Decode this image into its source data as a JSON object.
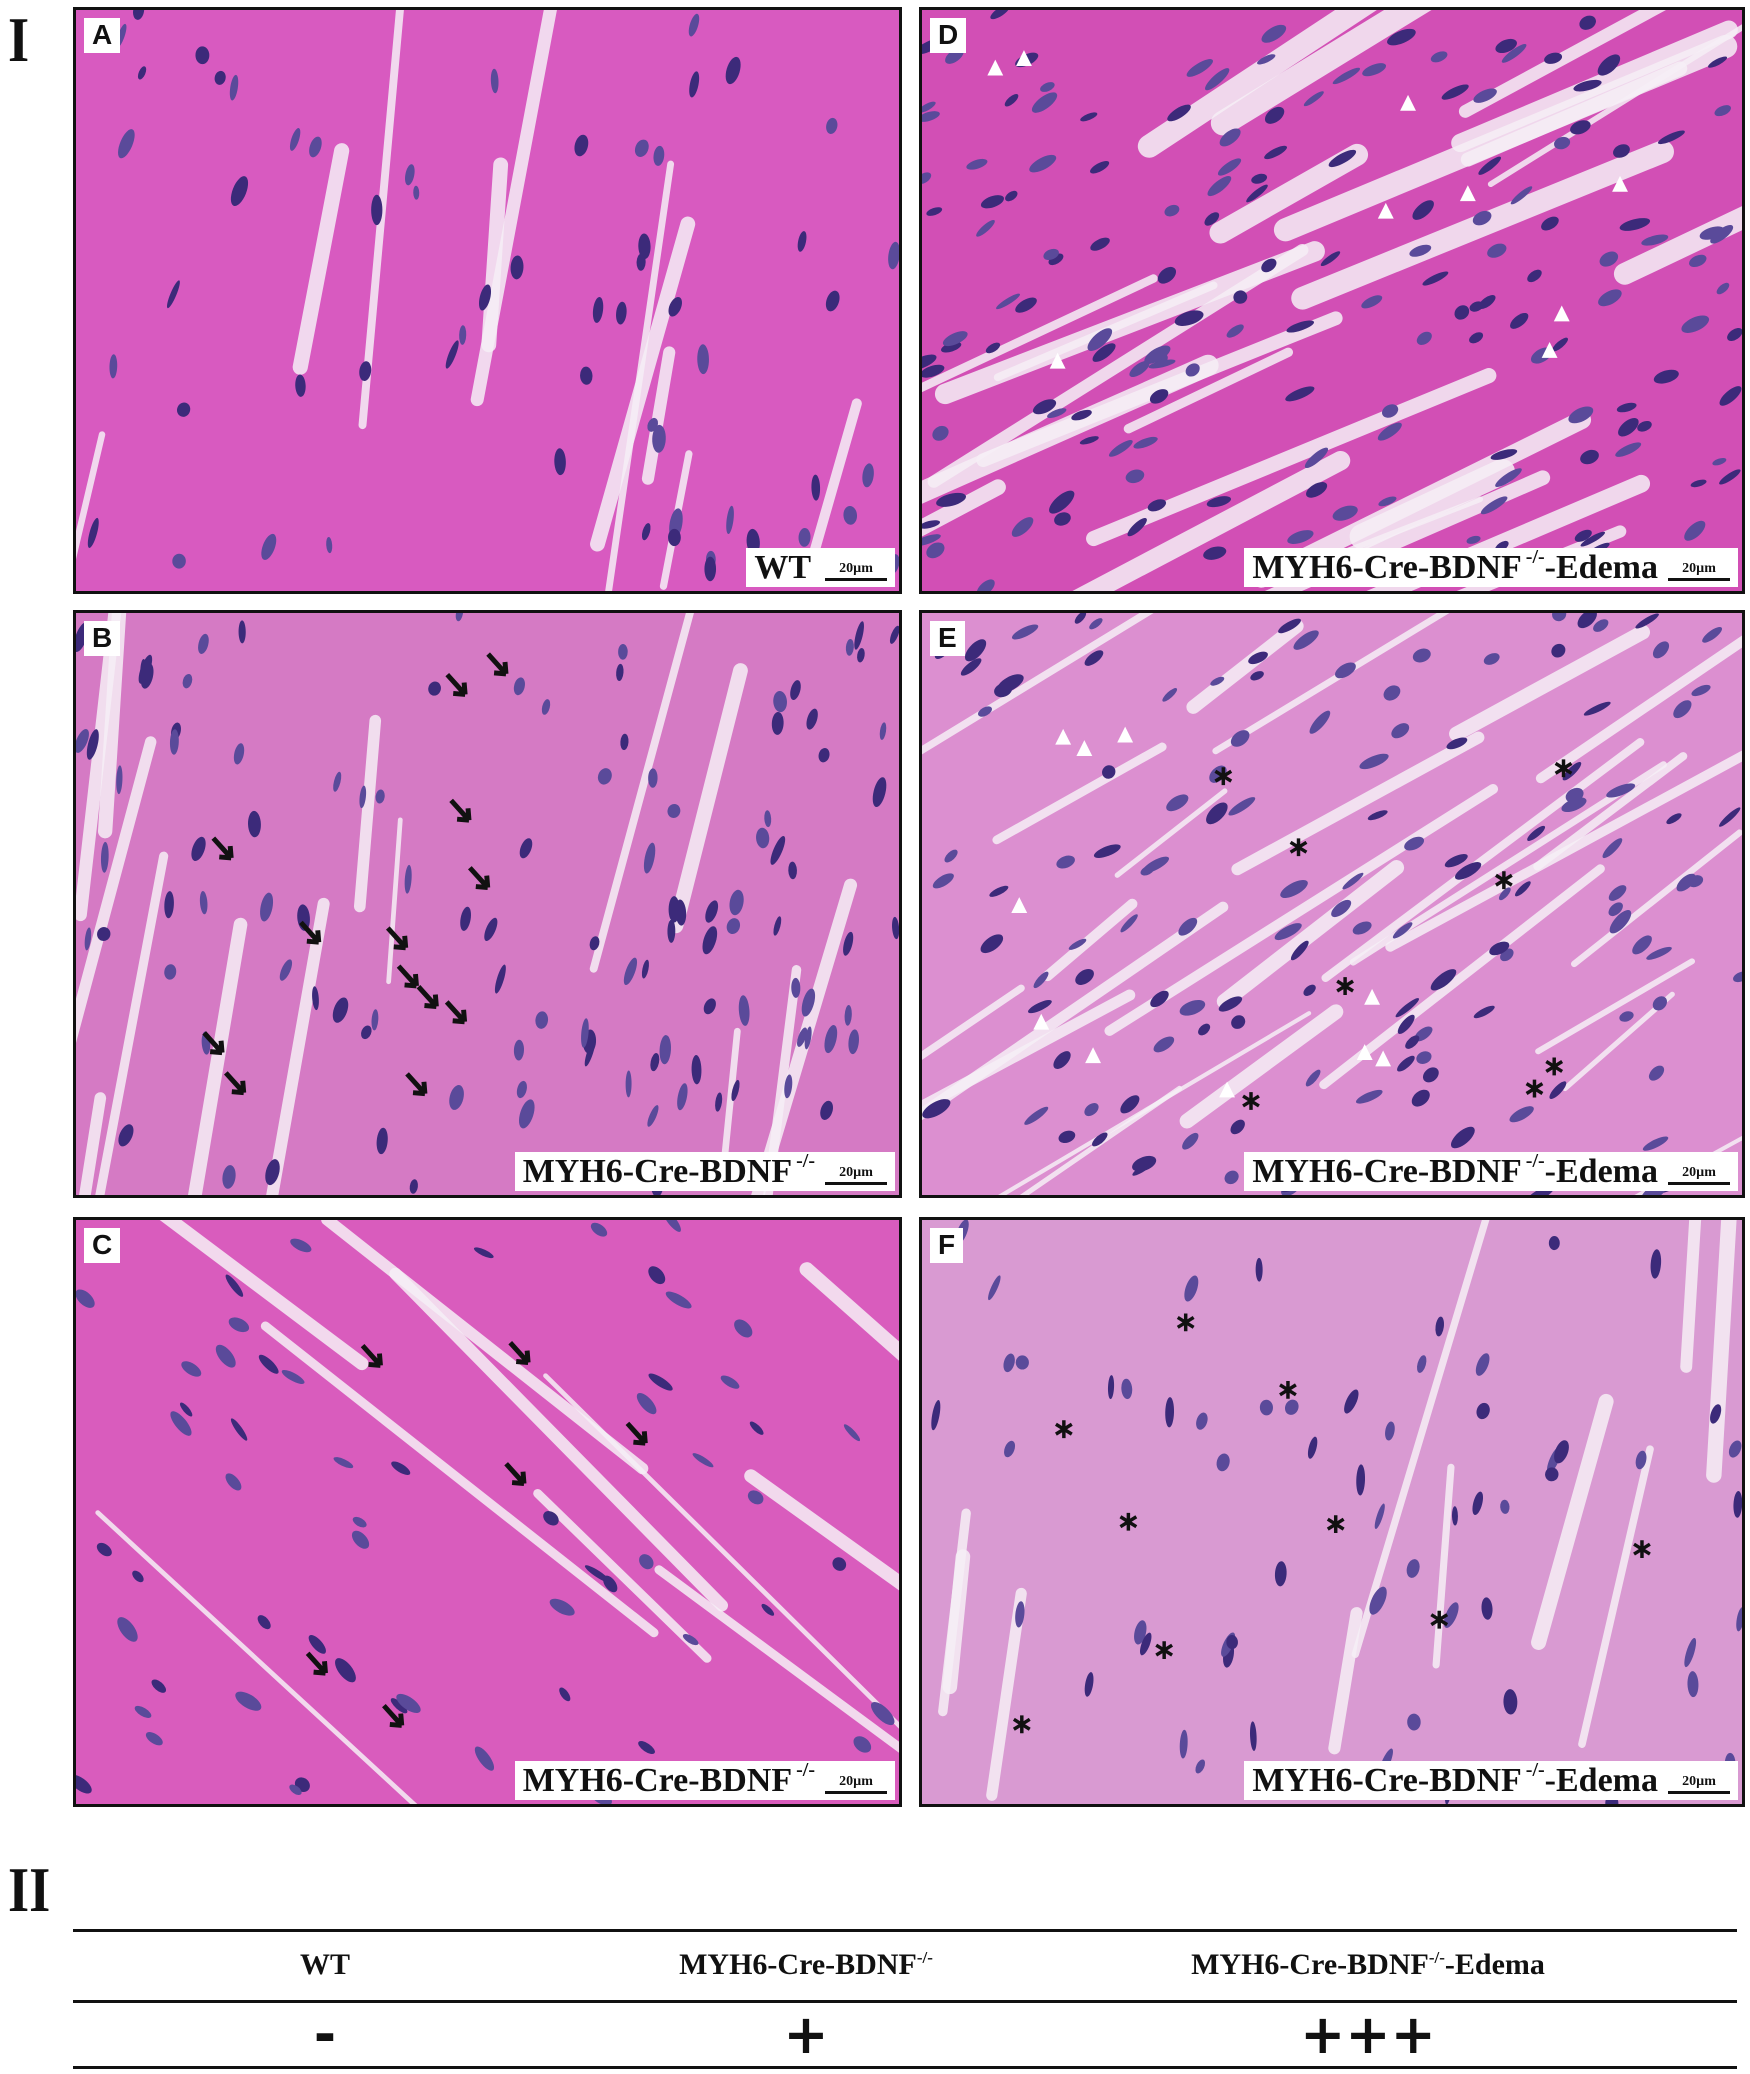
{
  "figure": {
    "part_one_label": "I",
    "part_two_label": "II",
    "scale_bar": "20µm",
    "panels": [
      {
        "id": "A",
        "letter": "A",
        "caption": "WT",
        "superscript": "",
        "suffix": "",
        "stain_color": "#d85ac0",
        "annotation": "none"
      },
      {
        "id": "B",
        "letter": "B",
        "caption": "MYH6-Cre-BDNF",
        "superscript": "-/-",
        "suffix": "",
        "stain_color": "#d57ac4",
        "annotation": "black-arrows"
      },
      {
        "id": "C",
        "letter": "C",
        "caption": "MYH6-Cre-BDNF",
        "superscript": "-/-",
        "suffix": "",
        "stain_color": "#d95cbd",
        "annotation": "black-arrows"
      },
      {
        "id": "D",
        "letter": "D",
        "caption": "MYH6-Cre-BDNF",
        "superscript": "-/-",
        "suffix": "-Edema",
        "stain_color": "#d24fb5",
        "annotation": "white-arrowheads"
      },
      {
        "id": "E",
        "letter": "E",
        "caption": "MYH6-Cre-BDNF",
        "superscript": "-/-",
        "suffix": "-Edema",
        "stain_color": "#dc8fd0",
        "annotation": "asterisks-and-white-arrowheads"
      },
      {
        "id": "F",
        "letter": "F",
        "caption": "MYH6-Cre-BDNF",
        "superscript": "-/-",
        "suffix": "-Edema",
        "stain_color": "#d99ad2",
        "annotation": "asterisks"
      }
    ]
  },
  "table": {
    "headers": [
      {
        "base": "WT",
        "superscript": "",
        "suffix": ""
      },
      {
        "base": "MYH6-Cre-BDNF",
        "superscript": "-/-",
        "suffix": ""
      },
      {
        "base": "MYH6-Cre-BDNF",
        "superscript": "-/-",
        "suffix": "-Edema"
      }
    ],
    "values": [
      "-",
      "+",
      "+++"
    ]
  }
}
